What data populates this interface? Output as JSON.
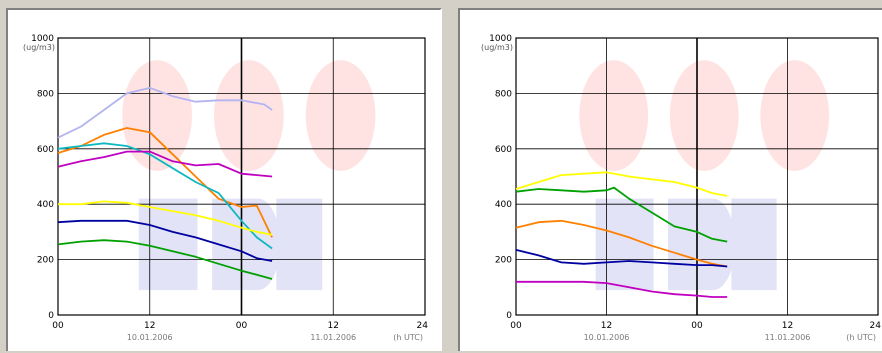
{
  "chart_data": [
    {
      "type": "line",
      "yunit": "(ug/m3)",
      "xunit": "(h UTC)",
      "ylim": [
        0,
        1000
      ],
      "xlim": [
        0,
        48
      ],
      "yticks": [
        0,
        200,
        400,
        600,
        800,
        1000
      ],
      "xticks": [
        {
          "x": 0,
          "label": "00"
        },
        {
          "x": 12,
          "label": "12"
        },
        {
          "x": 24,
          "label": "00"
        },
        {
          "x": 36,
          "label": "12"
        },
        {
          "x": 48,
          "label": "24"
        }
      ],
      "dates": [
        {
          "x": 12,
          "label": "10.01.2006"
        },
        {
          "x": 36,
          "label": "11.01.2006"
        }
      ],
      "grid": true,
      "series": [
        {
          "color": "#b4b4f0",
          "points": [
            [
              0,
              640
            ],
            [
              3,
              680
            ],
            [
              6,
              740
            ],
            [
              9,
              800
            ],
            [
              12,
              820
            ],
            [
              15,
              790
            ],
            [
              18,
              770
            ],
            [
              21,
              775
            ],
            [
              24,
              775
            ],
            [
              27,
              760
            ],
            [
              28,
              740
            ]
          ]
        },
        {
          "color": "#ff8000",
          "points": [
            [
              0,
              585
            ],
            [
              3,
              610
            ],
            [
              6,
              650
            ],
            [
              9,
              675
            ],
            [
              12,
              660
            ],
            [
              15,
              580
            ],
            [
              18,
              500
            ],
            [
              21,
              420
            ],
            [
              24,
              390
            ],
            [
              26,
              395
            ],
            [
              28,
              280
            ]
          ]
        },
        {
          "color": "#10b8c0",
          "points": [
            [
              0,
              600
            ],
            [
              3,
              610
            ],
            [
              6,
              620
            ],
            [
              9,
              610
            ],
            [
              12,
              580
            ],
            [
              15,
              530
            ],
            [
              18,
              480
            ],
            [
              21,
              440
            ],
            [
              24,
              340
            ],
            [
              26,
              280
            ],
            [
              28,
              240
            ]
          ]
        },
        {
          "color": "#c000c0",
          "points": [
            [
              0,
              535
            ],
            [
              3,
              555
            ],
            [
              6,
              570
            ],
            [
              9,
              590
            ],
            [
              12,
              590
            ],
            [
              15,
              555
            ],
            [
              18,
              540
            ],
            [
              21,
              545
            ],
            [
              24,
              510
            ],
            [
              26,
              505
            ],
            [
              28,
              500
            ]
          ]
        },
        {
          "color": "#ffff00",
          "points": [
            [
              0,
              400
            ],
            [
              3,
              400
            ],
            [
              6,
              410
            ],
            [
              9,
              405
            ],
            [
              12,
              390
            ],
            [
              15,
              375
            ],
            [
              18,
              360
            ],
            [
              21,
              340
            ],
            [
              24,
              315
            ],
            [
              26,
              300
            ],
            [
              28,
              290
            ]
          ]
        },
        {
          "color": "#0000a0",
          "points": [
            [
              0,
              335
            ],
            [
              3,
              340
            ],
            [
              6,
              340
            ],
            [
              9,
              340
            ],
            [
              12,
              325
            ],
            [
              15,
              300
            ],
            [
              18,
              280
            ],
            [
              21,
              255
            ],
            [
              24,
              230
            ],
            [
              26,
              205
            ],
            [
              28,
              195
            ]
          ]
        },
        {
          "color": "#00a000",
          "points": [
            [
              0,
              255
            ],
            [
              3,
              265
            ],
            [
              6,
              270
            ],
            [
              9,
              265
            ],
            [
              12,
              250
            ],
            [
              15,
              230
            ],
            [
              18,
              210
            ],
            [
              21,
              185
            ],
            [
              24,
              160
            ],
            [
              26,
              145
            ],
            [
              28,
              130
            ]
          ]
        }
      ]
    },
    {
      "type": "line",
      "yunit": "(ug/m3)",
      "xunit": "(h UTC)",
      "ylim": [
        0,
        1000
      ],
      "xlim": [
        0,
        48
      ],
      "yticks": [
        0,
        200,
        400,
        600,
        800,
        1000
      ],
      "xticks": [
        {
          "x": 0,
          "label": "00"
        },
        {
          "x": 12,
          "label": "12"
        },
        {
          "x": 24,
          "label": "00"
        },
        {
          "x": 36,
          "label": "12"
        },
        {
          "x": 48,
          "label": "24"
        }
      ],
      "dates": [
        {
          "x": 12,
          "label": "10.01.2006"
        },
        {
          "x": 36,
          "label": "11.01.2006"
        }
      ],
      "grid": true,
      "series": [
        {
          "color": "#ffff00",
          "points": [
            [
              0,
              455
            ],
            [
              3,
              480
            ],
            [
              6,
              505
            ],
            [
              9,
              510
            ],
            [
              12,
              515
            ],
            [
              15,
              500
            ],
            [
              18,
              490
            ],
            [
              21,
              480
            ],
            [
              24,
              460
            ],
            [
              26,
              440
            ],
            [
              28,
              430
            ]
          ]
        },
        {
          "color": "#00a000",
          "points": [
            [
              0,
              445
            ],
            [
              3,
              455
            ],
            [
              6,
              450
            ],
            [
              9,
              445
            ],
            [
              12,
              450
            ],
            [
              13,
              460
            ],
            [
              15,
              420
            ],
            [
              18,
              370
            ],
            [
              21,
              320
            ],
            [
              24,
              300
            ],
            [
              26,
              275
            ],
            [
              28,
              265
            ]
          ]
        },
        {
          "color": "#ff8000",
          "points": [
            [
              0,
              315
            ],
            [
              3,
              335
            ],
            [
              6,
              340
            ],
            [
              9,
              325
            ],
            [
              12,
              305
            ],
            [
              15,
              280
            ],
            [
              18,
              250
            ],
            [
              21,
              225
            ],
            [
              24,
              200
            ],
            [
              26,
              185
            ],
            [
              28,
              175
            ]
          ]
        },
        {
          "color": "#0000a0",
          "points": [
            [
              0,
              235
            ],
            [
              3,
              215
            ],
            [
              6,
              190
            ],
            [
              9,
              185
            ],
            [
              12,
              190
            ],
            [
              15,
              195
            ],
            [
              18,
              190
            ],
            [
              21,
              185
            ],
            [
              24,
              180
            ],
            [
              26,
              180
            ],
            [
              28,
              175
            ]
          ]
        },
        {
          "color": "#c000c0",
          "points": [
            [
              0,
              120
            ],
            [
              3,
              120
            ],
            [
              6,
              120
            ],
            [
              9,
              120
            ],
            [
              12,
              115
            ],
            [
              15,
              100
            ],
            [
              18,
              85
            ],
            [
              21,
              75
            ],
            [
              24,
              70
            ],
            [
              26,
              65
            ],
            [
              28,
              65
            ]
          ]
        }
      ]
    }
  ]
}
